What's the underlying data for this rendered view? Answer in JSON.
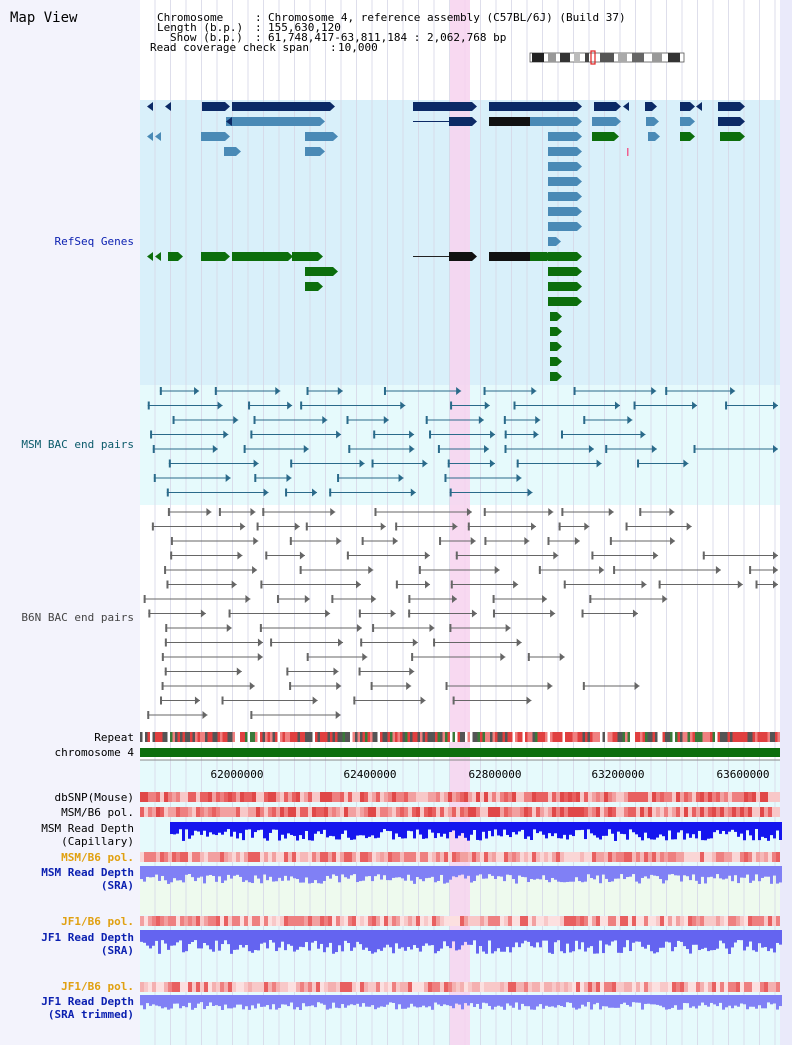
{
  "page": {
    "title": "Map View"
  },
  "header": {
    "chromosome_label": "Chromosome",
    "chromosome_value": "Chromosome 4, reference assembly (C57BL/6J) (Build 37)",
    "length_label": "Length (b.p.)",
    "length_value": "155,630,120",
    "show_label": "Show (b.p.)",
    "show_value": "61,748,417-63,811,184 : 2,062,768 bp",
    "coverage_label": "Read coverage check span",
    "coverage_value": "10,000"
  },
  "tracks": {
    "refseq": "RefSeq Genes",
    "msm_bac": "MSM BAC end pairs",
    "b6n_bac": "B6N BAC end pairs",
    "repeat": "Repeat",
    "chromosome": "chromosome 4",
    "dbsnp": "dbSNP(Mouse)",
    "msm_b6_pol_1": "MSM/B6 pol.",
    "msm_read_depth_cap_1": "MSM Read Depth",
    "msm_read_depth_cap_2": "(Capillary)",
    "msm_b6_pol_2": "MSM/B6 pol.",
    "msm_read_depth_sra_1": "MSM Read Depth",
    "msm_read_depth_sra_2": "(SRA)",
    "jf1_b6_pol_1": "JF1/B6 pol.",
    "jf1_read_depth_1": "JF1 Read Depth",
    "jf1_read_depth_2": "(SRA)",
    "jf1_b6_pol_2": "JF1/B6 pol.",
    "jf1_read_depth_trim_1": "JF1 Read Depth",
    "jf1_read_depth_trim_2": "(SRA trimmed)"
  },
  "axis": {
    "ticks": [
      "62000000",
      "62400000",
      "62800000",
      "63200000",
      "63600000"
    ]
  },
  "colors": {
    "refseq_bg": "#d9f0fa",
    "bac_bg": "#e6fafc",
    "highlight": "#f7d2ee",
    "gene_navy": "#0c2a66",
    "gene_blue": "#4a8ab6",
    "gene_green": "#0c6e0c",
    "label_blue": "#0a1fb0",
    "label_teal": "#0a5a6a",
    "label_orange": "#e0a010",
    "read_blue": "#1515ee",
    "read_light": "#8080f5"
  }
}
